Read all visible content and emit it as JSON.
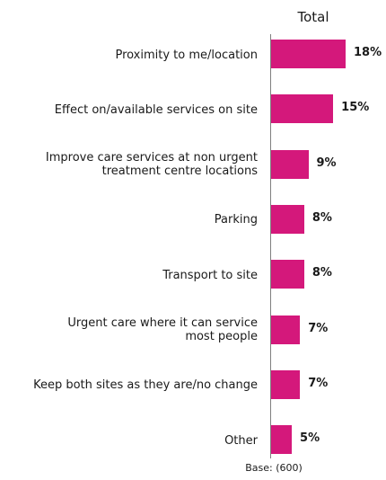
{
  "chart_data": {
    "type": "bar",
    "orientation": "horizontal",
    "series": [
      {
        "name": "Total",
        "values": [
          18,
          15,
          9,
          8,
          8,
          7,
          7,
          5
        ]
      }
    ],
    "categories": [
      "Proximity to me/location",
      "Effect on/available services on site",
      "Improve care services at non urgent\ntreatment centre locations",
      "Parking",
      "Transport to site",
      "Urgent care where it can service\nmost people",
      "Keep both sites as they are/no change",
      "Other"
    ],
    "value_labels": [
      "18%",
      "15%",
      "9%",
      "8%",
      "8%",
      "7%",
      "7%",
      "5%"
    ],
    "color": "#d4187b",
    "xlim": [
      0,
      18
    ],
    "grid": false,
    "legend": "none",
    "footnote": "Base: (600)"
  }
}
